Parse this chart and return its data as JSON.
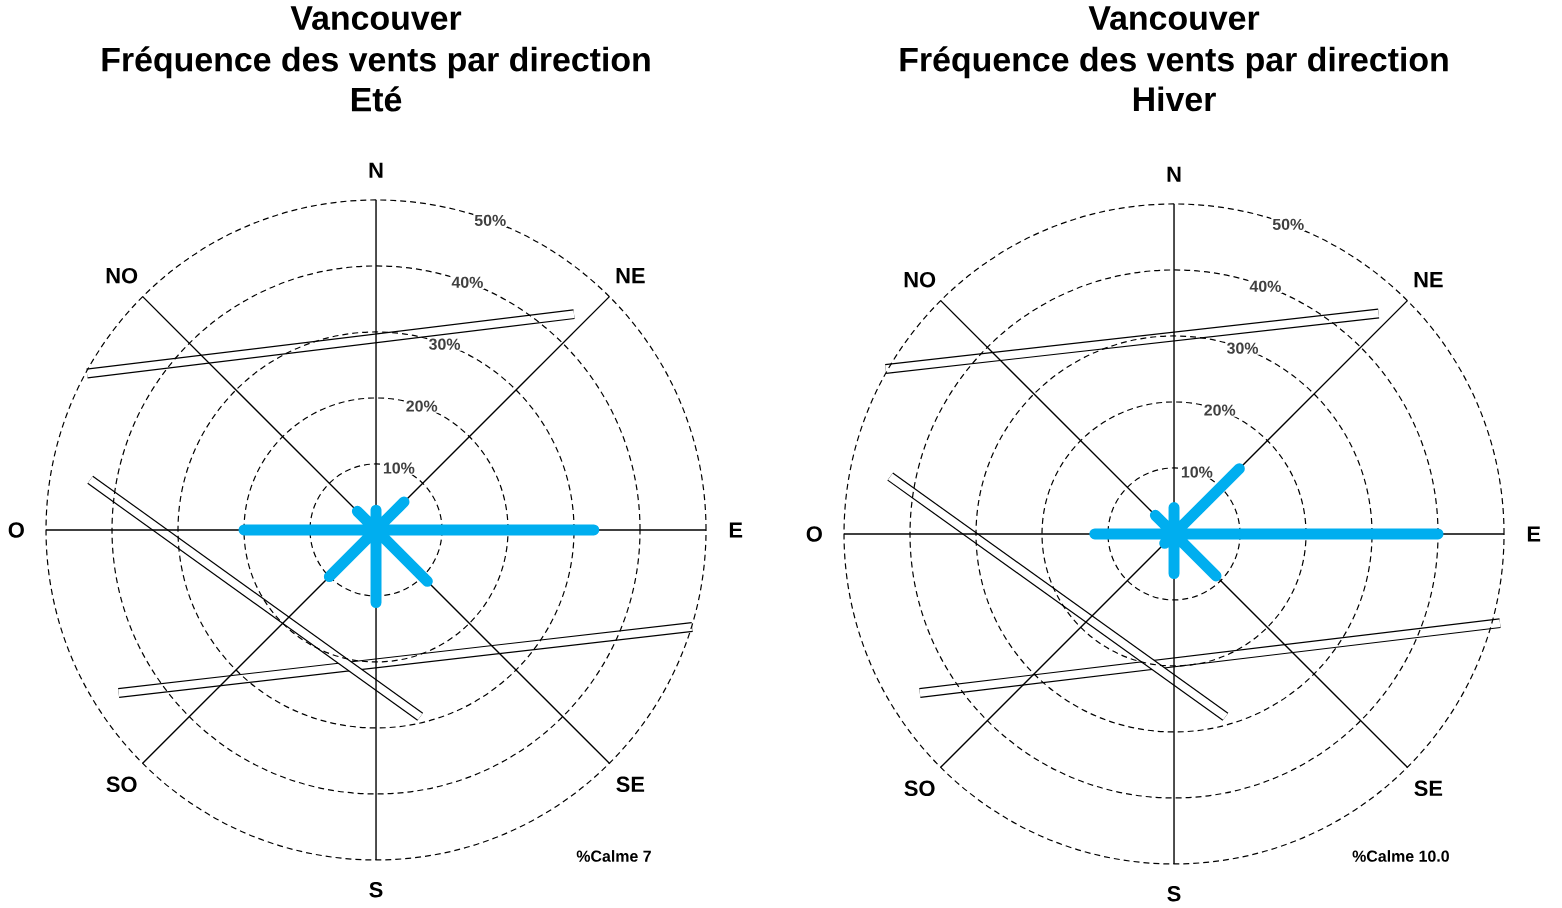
{
  "chart_data": [
    {
      "type": "radar",
      "title": "Vancouver",
      "subtitle": "Fréquence des vents par direction",
      "categories": [
        "N",
        "NE",
        "E",
        "SE",
        "S",
        "SO",
        "O",
        "NO"
      ],
      "series": [
        {
          "color": "#00aeef",
          "values": [
            3,
            6,
            33,
            11,
            11,
            10,
            20,
            4
          ]
        }
      ],
      "ylim": [
        0,
        50
      ],
      "yticks": [
        {
          "value": 10,
          "label": "10%"
        },
        {
          "value": 20,
          "label": "20%"
        },
        {
          "value": 30,
          "label": "30%"
        },
        {
          "value": 40,
          "label": "40%"
        },
        {
          "value": 50,
          "label": "50%"
        }
      ],
      "grid": true,
      "annotations": [
        "Eté",
        "%Calme 7"
      ]
    },
    {
      "type": "radar",
      "title": "Vancouver",
      "subtitle": "Fréquence des vents par direction",
      "categories": [
        "N",
        "NE",
        "E",
        "SE",
        "S",
        "SO",
        "O",
        "NO"
      ],
      "series": [
        {
          "color": "#00aeef",
          "values": [
            4,
            14,
            40,
            9,
            6,
            2,
            12,
            4
          ]
        }
      ],
      "ylim": [
        0,
        50
      ],
      "yticks": [
        {
          "value": 10,
          "label": "10%"
        },
        {
          "value": 20,
          "label": "20%"
        },
        {
          "value": 30,
          "label": "30%"
        },
        {
          "value": 40,
          "label": "40%"
        },
        {
          "value": 50,
          "label": "50%"
        }
      ],
      "grid": true,
      "annotations": [
        "Hiver",
        "%Calme 10.0"
      ]
    }
  ]
}
